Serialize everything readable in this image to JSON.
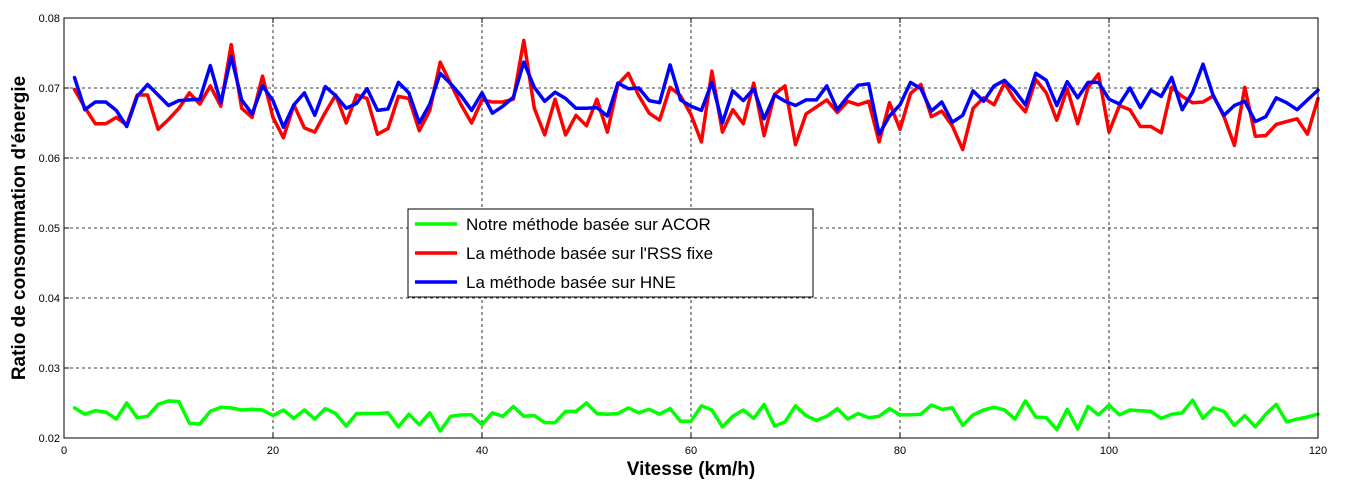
{
  "chart_data": {
    "type": "line",
    "title": "",
    "xlabel": "Vitesse (km/h)",
    "ylabel": "Ratio de consommation d'énergie",
    "xlim": [
      0,
      120
    ],
    "ylim": [
      0.02,
      0.08
    ],
    "xticks": [
      0,
      20,
      40,
      60,
      80,
      100,
      120
    ],
    "yticks": [
      0.02,
      0.03,
      0.04,
      0.05,
      0.06,
      0.07,
      0.08
    ],
    "xtick_labels": [
      "0",
      "20",
      "40",
      "60",
      "80",
      "100",
      "120"
    ],
    "ytick_labels": [
      "0.02",
      "0.03",
      "0.04",
      "0.05",
      "0.06",
      "0.07",
      "0.08"
    ],
    "grid": true,
    "legend_position": "center-left",
    "x": [
      1,
      2,
      3,
      4,
      5,
      6,
      7,
      8,
      9,
      10,
      11,
      12,
      13,
      14,
      15,
      16,
      17,
      18,
      19,
      20,
      21,
      22,
      23,
      24,
      25,
      26,
      27,
      28,
      29,
      30,
      31,
      32,
      33,
      34,
      35,
      36,
      37,
      38,
      39,
      40,
      41,
      42,
      43,
      44,
      45,
      46,
      47,
      48,
      49,
      50,
      51,
      52,
      53,
      54,
      55,
      56,
      57,
      58,
      59,
      60,
      61,
      62,
      63,
      64,
      65,
      66,
      67,
      68,
      69,
      70,
      71,
      72,
      73,
      74,
      75,
      76,
      77,
      78,
      79,
      80,
      81,
      82,
      83,
      84,
      85,
      86,
      87,
      88,
      89,
      90,
      91,
      92,
      93,
      94,
      95,
      96,
      97,
      98,
      99,
      100,
      101,
      102,
      103,
      104,
      105,
      106,
      107,
      108,
      109,
      110,
      111,
      112,
      113,
      114,
      115,
      116,
      117,
      118,
      119,
      120
    ],
    "series": [
      {
        "name": "Notre méthode basée sur ACOR",
        "color": "#00ff00",
        "values": [
          0.0243,
          0.0234,
          0.0239,
          0.0237,
          0.0227,
          0.025,
          0.0229,
          0.0231,
          0.0248,
          0.0253,
          0.0252,
          0.0221,
          0.022,
          0.0238,
          0.0244,
          0.0243,
          0.024,
          0.0241,
          0.024,
          0.0232,
          0.024,
          0.0228,
          0.024,
          0.0227,
          0.0242,
          0.0235,
          0.0217,
          0.0235,
          0.0235,
          0.0235,
          0.0236,
          0.0216,
          0.0234,
          0.0219,
          0.0236,
          0.021,
          0.0231,
          0.0233,
          0.0233,
          0.0219,
          0.0236,
          0.0231,
          0.0245,
          0.0231,
          0.0232,
          0.0222,
          0.0222,
          0.0238,
          0.0238,
          0.025,
          0.0235,
          0.0234,
          0.0235,
          0.0243,
          0.0236,
          0.0241,
          0.0234,
          0.0242,
          0.0224,
          0.0224,
          0.0246,
          0.024,
          0.0216,
          0.0231,
          0.024,
          0.0228,
          0.0248,
          0.0217,
          0.0223,
          0.0246,
          0.0232,
          0.0225,
          0.0231,
          0.0242,
          0.0227,
          0.0235,
          0.0229,
          0.0231,
          0.0242,
          0.0233,
          0.0233,
          0.0234,
          0.0247,
          0.0241,
          0.0243,
          0.0218,
          0.0233,
          0.024,
          0.0244,
          0.024,
          0.0227,
          0.0253,
          0.023,
          0.0229,
          0.0212,
          0.0241,
          0.0213,
          0.0245,
          0.0233,
          0.0247,
          0.0233,
          0.024,
          0.0239,
          0.0238,
          0.0228,
          0.0234,
          0.0236,
          0.0254,
          0.0228,
          0.0243,
          0.0238,
          0.0218,
          0.0232,
          0.0216,
          0.0234,
          0.0248,
          0.0223,
          0.0227,
          0.023,
          0.0234
        ]
      },
      {
        "name": "La méthode basée sur l'RSS fixe",
        "color": "#ff0000",
        "values": [
          0.0698,
          0.0672,
          0.0649,
          0.0649,
          0.0658,
          0.0647,
          0.069,
          0.069,
          0.0641,
          0.0655,
          0.0671,
          0.0693,
          0.0677,
          0.0703,
          0.0674,
          0.0762,
          0.0671,
          0.0658,
          0.0717,
          0.0658,
          0.0629,
          0.0676,
          0.0643,
          0.0637,
          0.0665,
          0.069,
          0.065,
          0.069,
          0.0685,
          0.0634,
          0.0642,
          0.0688,
          0.0685,
          0.0639,
          0.0668,
          0.0737,
          0.0706,
          0.0676,
          0.065,
          0.0683,
          0.068,
          0.068,
          0.0684,
          0.0768,
          0.0671,
          0.0633,
          0.0684,
          0.0633,
          0.0661,
          0.0646,
          0.0684,
          0.0637,
          0.0705,
          0.0721,
          0.0689,
          0.0664,
          0.0654,
          0.0701,
          0.0689,
          0.0662,
          0.0623,
          0.0724,
          0.0637,
          0.0669,
          0.0649,
          0.0707,
          0.0632,
          0.0691,
          0.0703,
          0.0619,
          0.0663,
          0.0673,
          0.0683,
          0.0665,
          0.0681,
          0.0676,
          0.0681,
          0.0623,
          0.0679,
          0.0641,
          0.0692,
          0.0705,
          0.0659,
          0.0667,
          0.0646,
          0.0612,
          0.0671,
          0.0686,
          0.0676,
          0.0707,
          0.0683,
          0.0666,
          0.0712,
          0.0693,
          0.0654,
          0.0699,
          0.0649,
          0.0701,
          0.072,
          0.0637,
          0.0675,
          0.0669,
          0.0645,
          0.0645,
          0.0636,
          0.0701,
          0.0688,
          0.0679,
          0.068,
          0.0689,
          0.0659,
          0.0618,
          0.0701,
          0.0631,
          0.0632,
          0.0648,
          0.0652,
          0.0656,
          0.0634,
          0.0685
        ]
      },
      {
        "name": "La méthode basée sur HNE",
        "color": "#0000ff",
        "values": [
          0.0715,
          0.0669,
          0.068,
          0.068,
          0.0668,
          0.0645,
          0.0688,
          0.0705,
          0.069,
          0.0675,
          0.0682,
          0.0683,
          0.0684,
          0.0732,
          0.0679,
          0.0745,
          0.0683,
          0.0663,
          0.0703,
          0.0682,
          0.0644,
          0.0676,
          0.0693,
          0.0661,
          0.0702,
          0.0689,
          0.0671,
          0.0678,
          0.0699,
          0.0668,
          0.067,
          0.0708,
          0.0693,
          0.065,
          0.0677,
          0.0721,
          0.0706,
          0.0689,
          0.0668,
          0.0693,
          0.0664,
          0.0674,
          0.0687,
          0.0737,
          0.0701,
          0.0681,
          0.0694,
          0.0685,
          0.0671,
          0.0671,
          0.0672,
          0.066,
          0.0707,
          0.0699,
          0.07,
          0.0682,
          0.0679,
          0.0733,
          0.0683,
          0.0674,
          0.0668,
          0.0708,
          0.065,
          0.0696,
          0.0682,
          0.0699,
          0.0656,
          0.069,
          0.0681,
          0.0675,
          0.0683,
          0.0683,
          0.0703,
          0.0669,
          0.0688,
          0.0704,
          0.0706,
          0.0634,
          0.066,
          0.0676,
          0.0708,
          0.0699,
          0.0667,
          0.068,
          0.0651,
          0.0661,
          0.0696,
          0.0681,
          0.0703,
          0.0711,
          0.0696,
          0.0676,
          0.0721,
          0.0711,
          0.0675,
          0.0709,
          0.0686,
          0.0708,
          0.0708,
          0.0684,
          0.0677,
          0.07,
          0.0672,
          0.0697,
          0.0688,
          0.0715,
          0.0669,
          0.0694,
          0.0734,
          0.0688,
          0.0661,
          0.0675,
          0.0681,
          0.0652,
          0.0659,
          0.0686,
          0.0679,
          0.0669,
          0.0683,
          0.0697
        ]
      }
    ]
  }
}
